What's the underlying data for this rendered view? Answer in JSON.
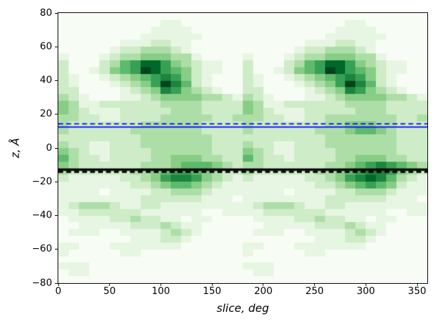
{
  "chart_data": {
    "type": "heatmap",
    "title": "",
    "xlabel": "slice, deg",
    "ylabel": "z, Å",
    "xlim": [
      0,
      360
    ],
    "ylim": [
      -80,
      80
    ],
    "x_bin_deg": 10,
    "y_bin_angstrom": 4,
    "n_cols": 36,
    "n_rows": 40,
    "grid_on": false,
    "colormap": "Greens",
    "colormap_anchors": [
      "#f7fcf5",
      "#e5f5e0",
      "#c7e9c0",
      "#a1d99b",
      "#74c476",
      "#41ab5d",
      "#238b45",
      "#006d2c",
      "#00441b"
    ],
    "value_encoding": "each character 0-9 is relative density, 0=min (white) 9=max (dark green); rows listed from z=+80 (top) to z=-80 (bottom), columns from 0 to 360 deg",
    "x_ticks": [
      {
        "value": 0,
        "label": "0"
      },
      {
        "value": 50,
        "label": "50"
      },
      {
        "value": 100,
        "label": "100"
      },
      {
        "value": 150,
        "label": "150"
      },
      {
        "value": 200,
        "label": "200"
      },
      {
        "value": 250,
        "label": "250"
      },
      {
        "value": 300,
        "label": "300"
      },
      {
        "value": 350,
        "label": "350"
      }
    ],
    "y_ticks": [
      {
        "value": 80,
        "label": "80"
      },
      {
        "value": 60,
        "label": "60"
      },
      {
        "value": 40,
        "label": "40"
      },
      {
        "value": 20,
        "label": "20"
      },
      {
        "value": 0,
        "label": "0"
      },
      {
        "value": -20,
        "label": "−20"
      },
      {
        "value": -40,
        "label": "−40"
      },
      {
        "value": -60,
        "label": "−60"
      },
      {
        "value": -80,
        "label": "−80"
      }
    ],
    "grid_rows_z_descending": [
      "000000000000000000000000000000000000",
      "000000000011000000000000000011000000",
      "000000000111100000000000000111100000",
      "000000001111110000000000001111110000",
      "000000111221100000000000111221100000",
      "000001223332100000000001223332100000",
      "100012334443310000100012334443310000",
      "200023568864321100200023568864321100",
      "200124569865421100200124569865421100",
      "210012345676421000210012345676421000",
      "210001234697521000210001234697521000",
      "220000123476432100220000123476432100",
      "321000112344443321321000112344443321",
      "431122222233332222431122222233332222",
      "432111222223332222432111222223332222",
      "332211222233333223332211223333333223",
      "322222223333332222322222223344433222",
      "322222233333332222322222233345543222",
      "222222223333333222222222223333333222",
      "322112223333333222322112223333333222",
      "432112222333333222432112222333333222",
      "532212222334443322532212222334443322",
      "432222223334555432332222223345676543",
      "322222233456654322322222233456776432",
      "211111223467764321211111223467875321",
      "111111122345543211111111122345654211",
      "111101111223332111111101111223332111",
      "111111112222221110111111112222221110",
      "123332112211111111123332112211111111",
      "112222221111110011112222221111110011",
      "011112232211011000011112232211011000",
      "001111122232110000001111122232110000",
      "011100111123210000011100111123210000",
      "000000011122100000000000011122100000",
      "110001111111000000110001111111000000",
      "100000110000000000100000110000000000",
      "000000000000000000000000000000000000",
      "111000000000000000111000000000000000",
      "011000000000000000011000000000000000",
      "000000000000000000000000000000000000"
    ],
    "hlines": [
      {
        "z": 14.4,
        "color": "#0000ff",
        "style": "dashed",
        "width": 1.8
      },
      {
        "z": 12.4,
        "color": "#0000ff",
        "style": "solid",
        "width": 1.8
      },
      {
        "z": -12.8,
        "color": "#000000",
        "style": "solid",
        "width": 3.5
      },
      {
        "z": -14.1,
        "color": "#000000",
        "style": "dashed",
        "width": 3.0
      }
    ]
  }
}
